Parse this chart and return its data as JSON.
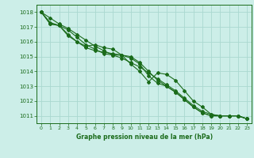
{
  "xlabel": "Graphe pression niveau de la mer (hPa)",
  "x": [
    0,
    1,
    2,
    3,
    4,
    5,
    6,
    7,
    8,
    9,
    10,
    11,
    12,
    13,
    14,
    15,
    16,
    17,
    18,
    19,
    20,
    21,
    22,
    23
  ],
  "series": [
    [
      1018.0,
      1017.6,
      1017.2,
      1016.9,
      1016.5,
      1016.1,
      1015.7,
      1015.4,
      1015.1,
      1014.9,
      1014.6,
      1014.3,
      1013.9,
      1013.5,
      1013.1,
      1012.7,
      1012.2,
      1011.7,
      1011.3,
      1011.1,
      1011.0,
      1011.0,
      1011.0,
      1010.8
    ],
    [
      1018.0,
      1017.3,
      1017.1,
      1016.8,
      1016.3,
      1015.8,
      1015.5,
      1015.2,
      1015.1,
      1015.1,
      1015.0,
      1014.6,
      1014.0,
      1013.4,
      1013.0,
      1012.6,
      1012.1,
      1011.6,
      1011.2,
      1011.0,
      1011.0,
      1011.0,
      1011.0,
      1010.8
    ],
    [
      1018.0,
      1017.2,
      1017.1,
      1016.5,
      1016.0,
      1015.6,
      1015.4,
      1015.3,
      1015.2,
      1015.1,
      1014.9,
      1014.5,
      1013.7,
      1013.2,
      1013.0,
      1012.6,
      1012.1,
      1011.6,
      1011.2,
      1011.0,
      1011.0,
      1011.0,
      1011.0,
      1010.8
    ],
    [
      1018.0,
      1017.2,
      1017.1,
      1016.4,
      1016.0,
      1015.7,
      1015.8,
      1015.6,
      1015.5,
      1015.1,
      1014.5,
      1014.0,
      1013.3,
      1013.9,
      1013.8,
      1013.4,
      1012.7,
      1012.0,
      1011.6,
      1011.1,
      1011.0,
      1011.0,
      1011.0,
      1010.8
    ]
  ],
  "line_color": "#1a6b1a",
  "marker": "D",
  "marker_size": 2.0,
  "line_width": 0.8,
  "bg_color": "#cceee8",
  "grid_color": "#aad8d0",
  "axes_color": "#1a6b1a",
  "tick_color": "#1a6b1a",
  "label_color": "#1a6b1a",
  "ylim": [
    1010.5,
    1018.5
  ],
  "xlim": [
    -0.5,
    23.5
  ],
  "yticks": [
    1011,
    1012,
    1013,
    1014,
    1015,
    1016,
    1017,
    1018
  ],
  "xticks": [
    0,
    1,
    2,
    3,
    4,
    5,
    6,
    7,
    8,
    9,
    10,
    11,
    12,
    13,
    14,
    15,
    16,
    17,
    18,
    19,
    20,
    21,
    22,
    23
  ]
}
